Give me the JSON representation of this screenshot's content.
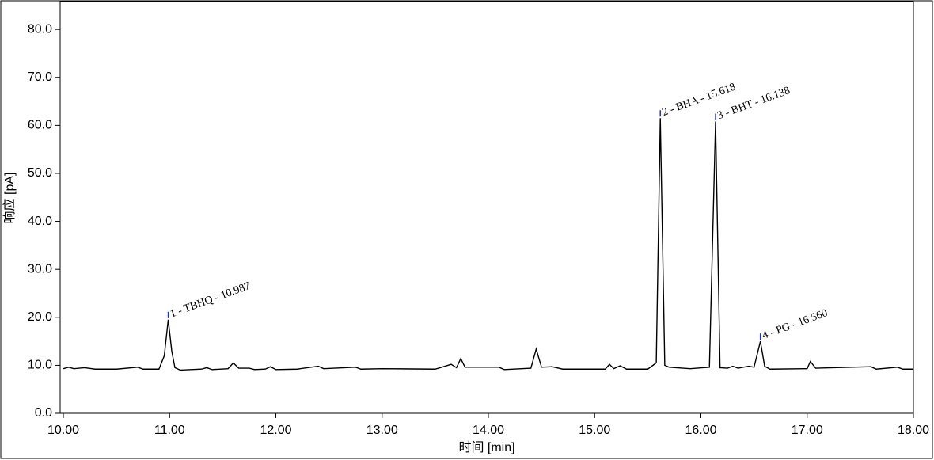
{
  "chart_data": {
    "type": "line",
    "x_label": "时间 [min]",
    "y_label": "响应 [pA]",
    "xlim": [
      9.97,
      18.0
    ],
    "ylim": [
      0,
      85.8
    ],
    "xticks": [
      {
        "value": 10,
        "label": "10.00"
      },
      {
        "value": 11,
        "label": "11.00"
      },
      {
        "value": 12,
        "label": "12.00"
      },
      {
        "value": 13,
        "label": "13.00"
      },
      {
        "value": 14,
        "label": "14.00"
      },
      {
        "value": 15,
        "label": "15.00"
      },
      {
        "value": 16,
        "label": "16.00"
      },
      {
        "value": 17,
        "label": "17.00"
      },
      {
        "value": 18,
        "label": "18.00"
      }
    ],
    "yticks": [
      {
        "value": 0,
        "label": "0.0"
      },
      {
        "value": 10,
        "label": "10.0"
      },
      {
        "value": 20,
        "label": "20.0"
      },
      {
        "value": 30,
        "label": "30.0"
      },
      {
        "value": 40,
        "label": "40.0"
      },
      {
        "value": 50,
        "label": "50.0"
      },
      {
        "value": 60,
        "label": "60.0"
      },
      {
        "value": 70,
        "label": "70.0"
      },
      {
        "value": 80,
        "label": "80.0"
      }
    ],
    "x": [
      10.0,
      10.05,
      10.1,
      10.2,
      10.3,
      10.5,
      10.7,
      10.75,
      10.9,
      10.95,
      10.987,
      11.02,
      11.05,
      11.1,
      11.3,
      11.35,
      11.4,
      11.55,
      11.6,
      11.65,
      11.75,
      11.8,
      11.9,
      11.95,
      12.0,
      12.2,
      12.4,
      12.45,
      12.75,
      12.8,
      13.0,
      13.5,
      13.65,
      13.7,
      13.74,
      13.78,
      14.1,
      14.15,
      14.4,
      14.45,
      14.5,
      14.6,
      14.7,
      15.1,
      15.14,
      15.18,
      15.24,
      15.3,
      15.5,
      15.58,
      15.618,
      15.66,
      15.7,
      15.9,
      16.08,
      16.138,
      16.18,
      16.25,
      16.3,
      16.35,
      16.45,
      16.5,
      16.56,
      16.6,
      16.65,
      17.0,
      17.03,
      17.08,
      17.25,
      17.6,
      17.65,
      17.85,
      17.9,
      18.0
    ],
    "series": [
      {
        "color": "#000000",
        "values": [
          9.3,
          9.6,
          9.3,
          9.5,
          9.2,
          9.2,
          9.6,
          9.2,
          9.2,
          12.0,
          19.5,
          13.0,
          9.5,
          9.0,
          9.2,
          9.5,
          9.1,
          9.3,
          10.5,
          9.4,
          9.4,
          9.1,
          9.2,
          9.7,
          9.1,
          9.2,
          9.8,
          9.3,
          9.6,
          9.2,
          9.3,
          9.2,
          10.2,
          9.5,
          11.4,
          9.6,
          9.6,
          9.1,
          9.4,
          13.4,
          9.6,
          9.7,
          9.2,
          9.2,
          10.2,
          9.3,
          9.9,
          9.2,
          9.2,
          10.5,
          61.5,
          10.0,
          9.6,
          9.3,
          9.6,
          60.8,
          9.5,
          9.4,
          9.8,
          9.4,
          9.8,
          9.6,
          15.0,
          9.8,
          9.2,
          9.3,
          10.8,
          9.4,
          9.5,
          9.7,
          9.2,
          9.6,
          9.2,
          9.2
        ]
      }
    ],
    "annotations": [
      {
        "text": "1 - TBHQ - 10.987",
        "x": 10.987,
        "y": 19.5
      },
      {
        "text": "2 - BHA - 15.618",
        "x": 15.618,
        "y": 61.5
      },
      {
        "text": "3 - BHT - 16.138",
        "x": 16.138,
        "y": 60.8
      },
      {
        "text": "4 - PG - 16.560",
        "x": 16.56,
        "y": 15.0
      }
    ]
  }
}
